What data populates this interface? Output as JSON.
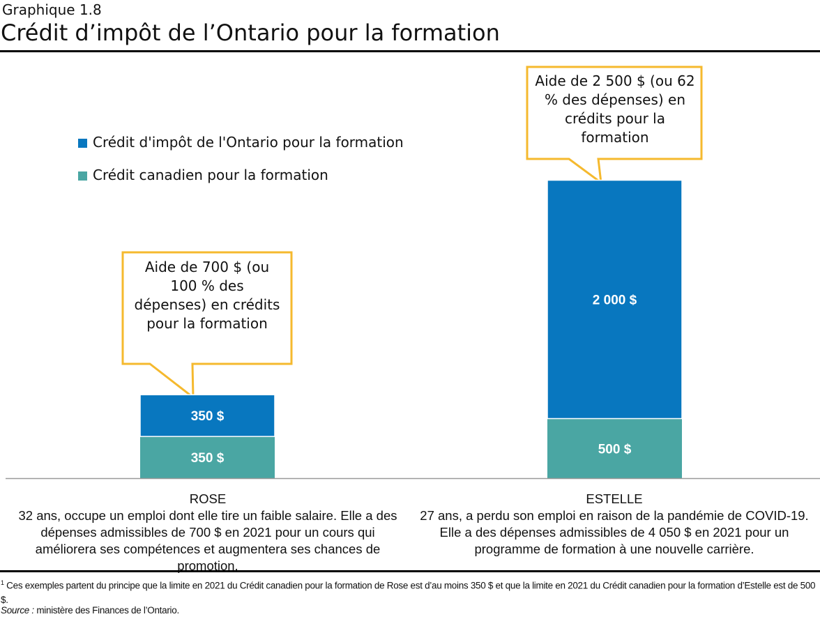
{
  "header": {
    "subtitle": "Graphique 1.8",
    "title": "Crédit d’impôt de l’Ontario pour la formation"
  },
  "chart_data": {
    "type": "bar",
    "stacked": true,
    "categories": [
      "ROSE",
      "ESTELLE"
    ],
    "series": [
      {
        "name": "Crédit canadien pour la formation",
        "values": [
          350,
          500
        ],
        "labels": [
          "350 $",
          "500 $"
        ],
        "color": "#4aa6a3"
      },
      {
        "name": "Crédit d'impôt de l'Ontario pour la formation",
        "values": [
          350,
          2000
        ],
        "labels": [
          "350 $",
          "2 000 $"
        ],
        "color": "#0877bf"
      }
    ],
    "legend_placement": "top-left",
    "grid": false,
    "annotation_color": "#f5b92e",
    "annotations": [
      "Aide de 700 $ (ou 100 % des dépenses) en crédits pour la formation",
      "Aide de 2 500 $ (ou 62 % des dépenses) en crédits pour la formation"
    ],
    "category_descriptions": [
      "32 ans, occupe un emploi dont elle tire un faible salaire. Elle a des dépenses admissibles de 700 $ en 2021 pour un cours qui améliorera ses compétences et augmentera ses chances de promotion.",
      "27 ans, a perdu son emploi en raison de la pandémie de COVID-19. Elle a des dépenses admissibles de 4 050 $ en 2021 pour un programme de formation à une nouvelle carrière."
    ]
  },
  "footnotes": {
    "marker": "1",
    "note": "Ces exemples partent du principe que la limite en 2021 du Crédit canadien pour la formation de Rose est d’au moins 350 $ et que la limite en 2021 du Crédit canadien pour la formation d’Estelle est de 500 $.",
    "source_label": "Source :",
    "source": "ministère des Finances de l’Ontario."
  }
}
